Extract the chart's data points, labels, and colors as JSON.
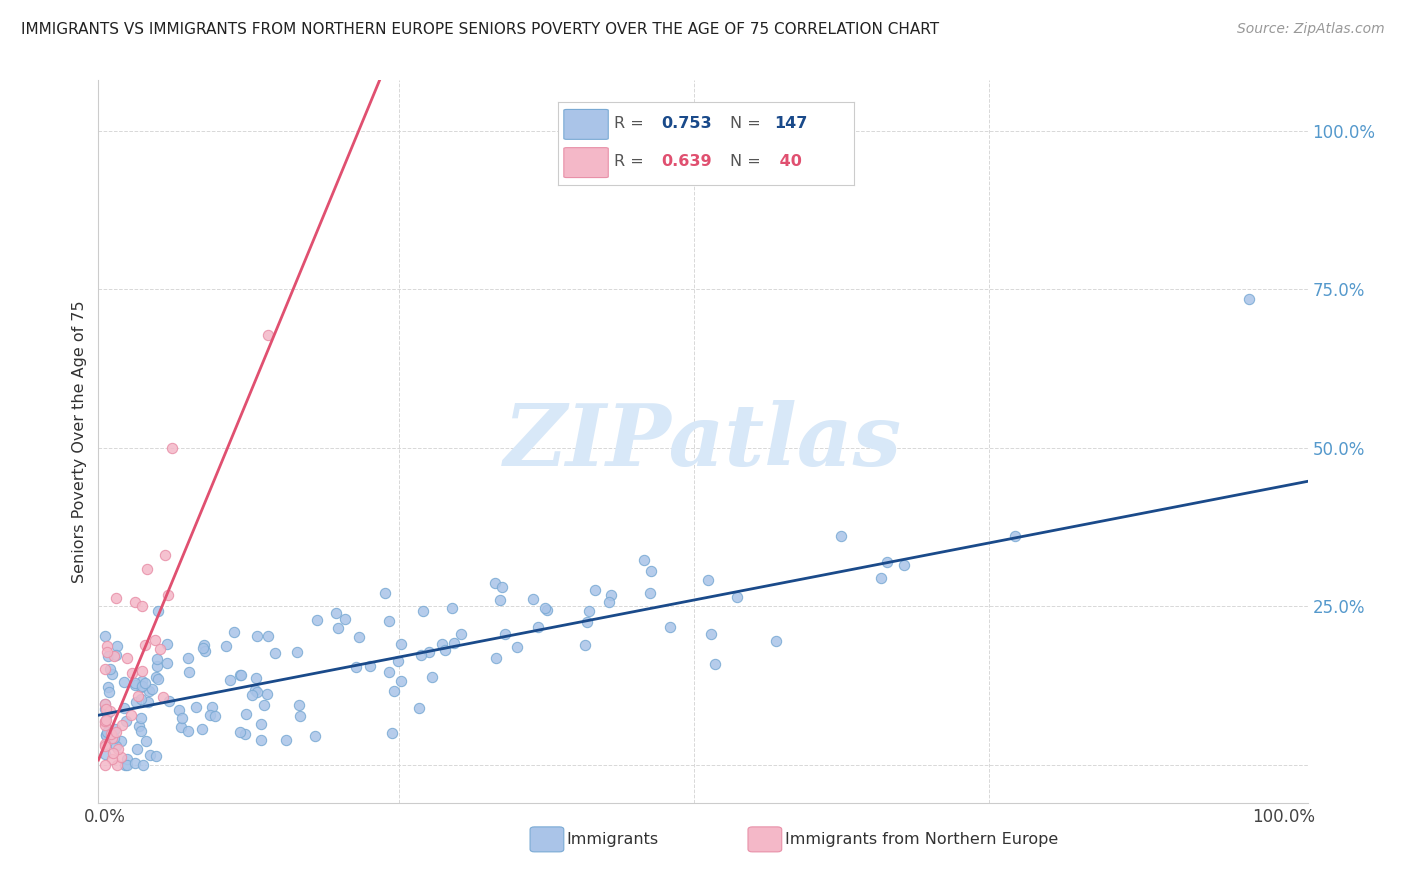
{
  "title": "IMMIGRANTS VS IMMIGRANTS FROM NORTHERN EUROPE SENIORS POVERTY OVER THE AGE OF 75 CORRELATION CHART",
  "source": "Source: ZipAtlas.com",
  "ylabel": "Seniors Poverty Over the Age of 75",
  "blue_R": 0.753,
  "blue_N": 147,
  "pink_R": 0.639,
  "pink_N": 40,
  "blue_color": "#aac4e8",
  "blue_edge_color": "#7aaad4",
  "pink_color": "#f4b8c8",
  "pink_edge_color": "#e890a8",
  "blue_line_color": "#1a4a8a",
  "pink_line_color": "#e05070",
  "watermark_color": "#d8e8f8",
  "background_color": "#ffffff",
  "grid_color": "#d8d8d8",
  "right_tick_color": "#5599cc",
  "title_color": "#222222",
  "source_color": "#999999"
}
